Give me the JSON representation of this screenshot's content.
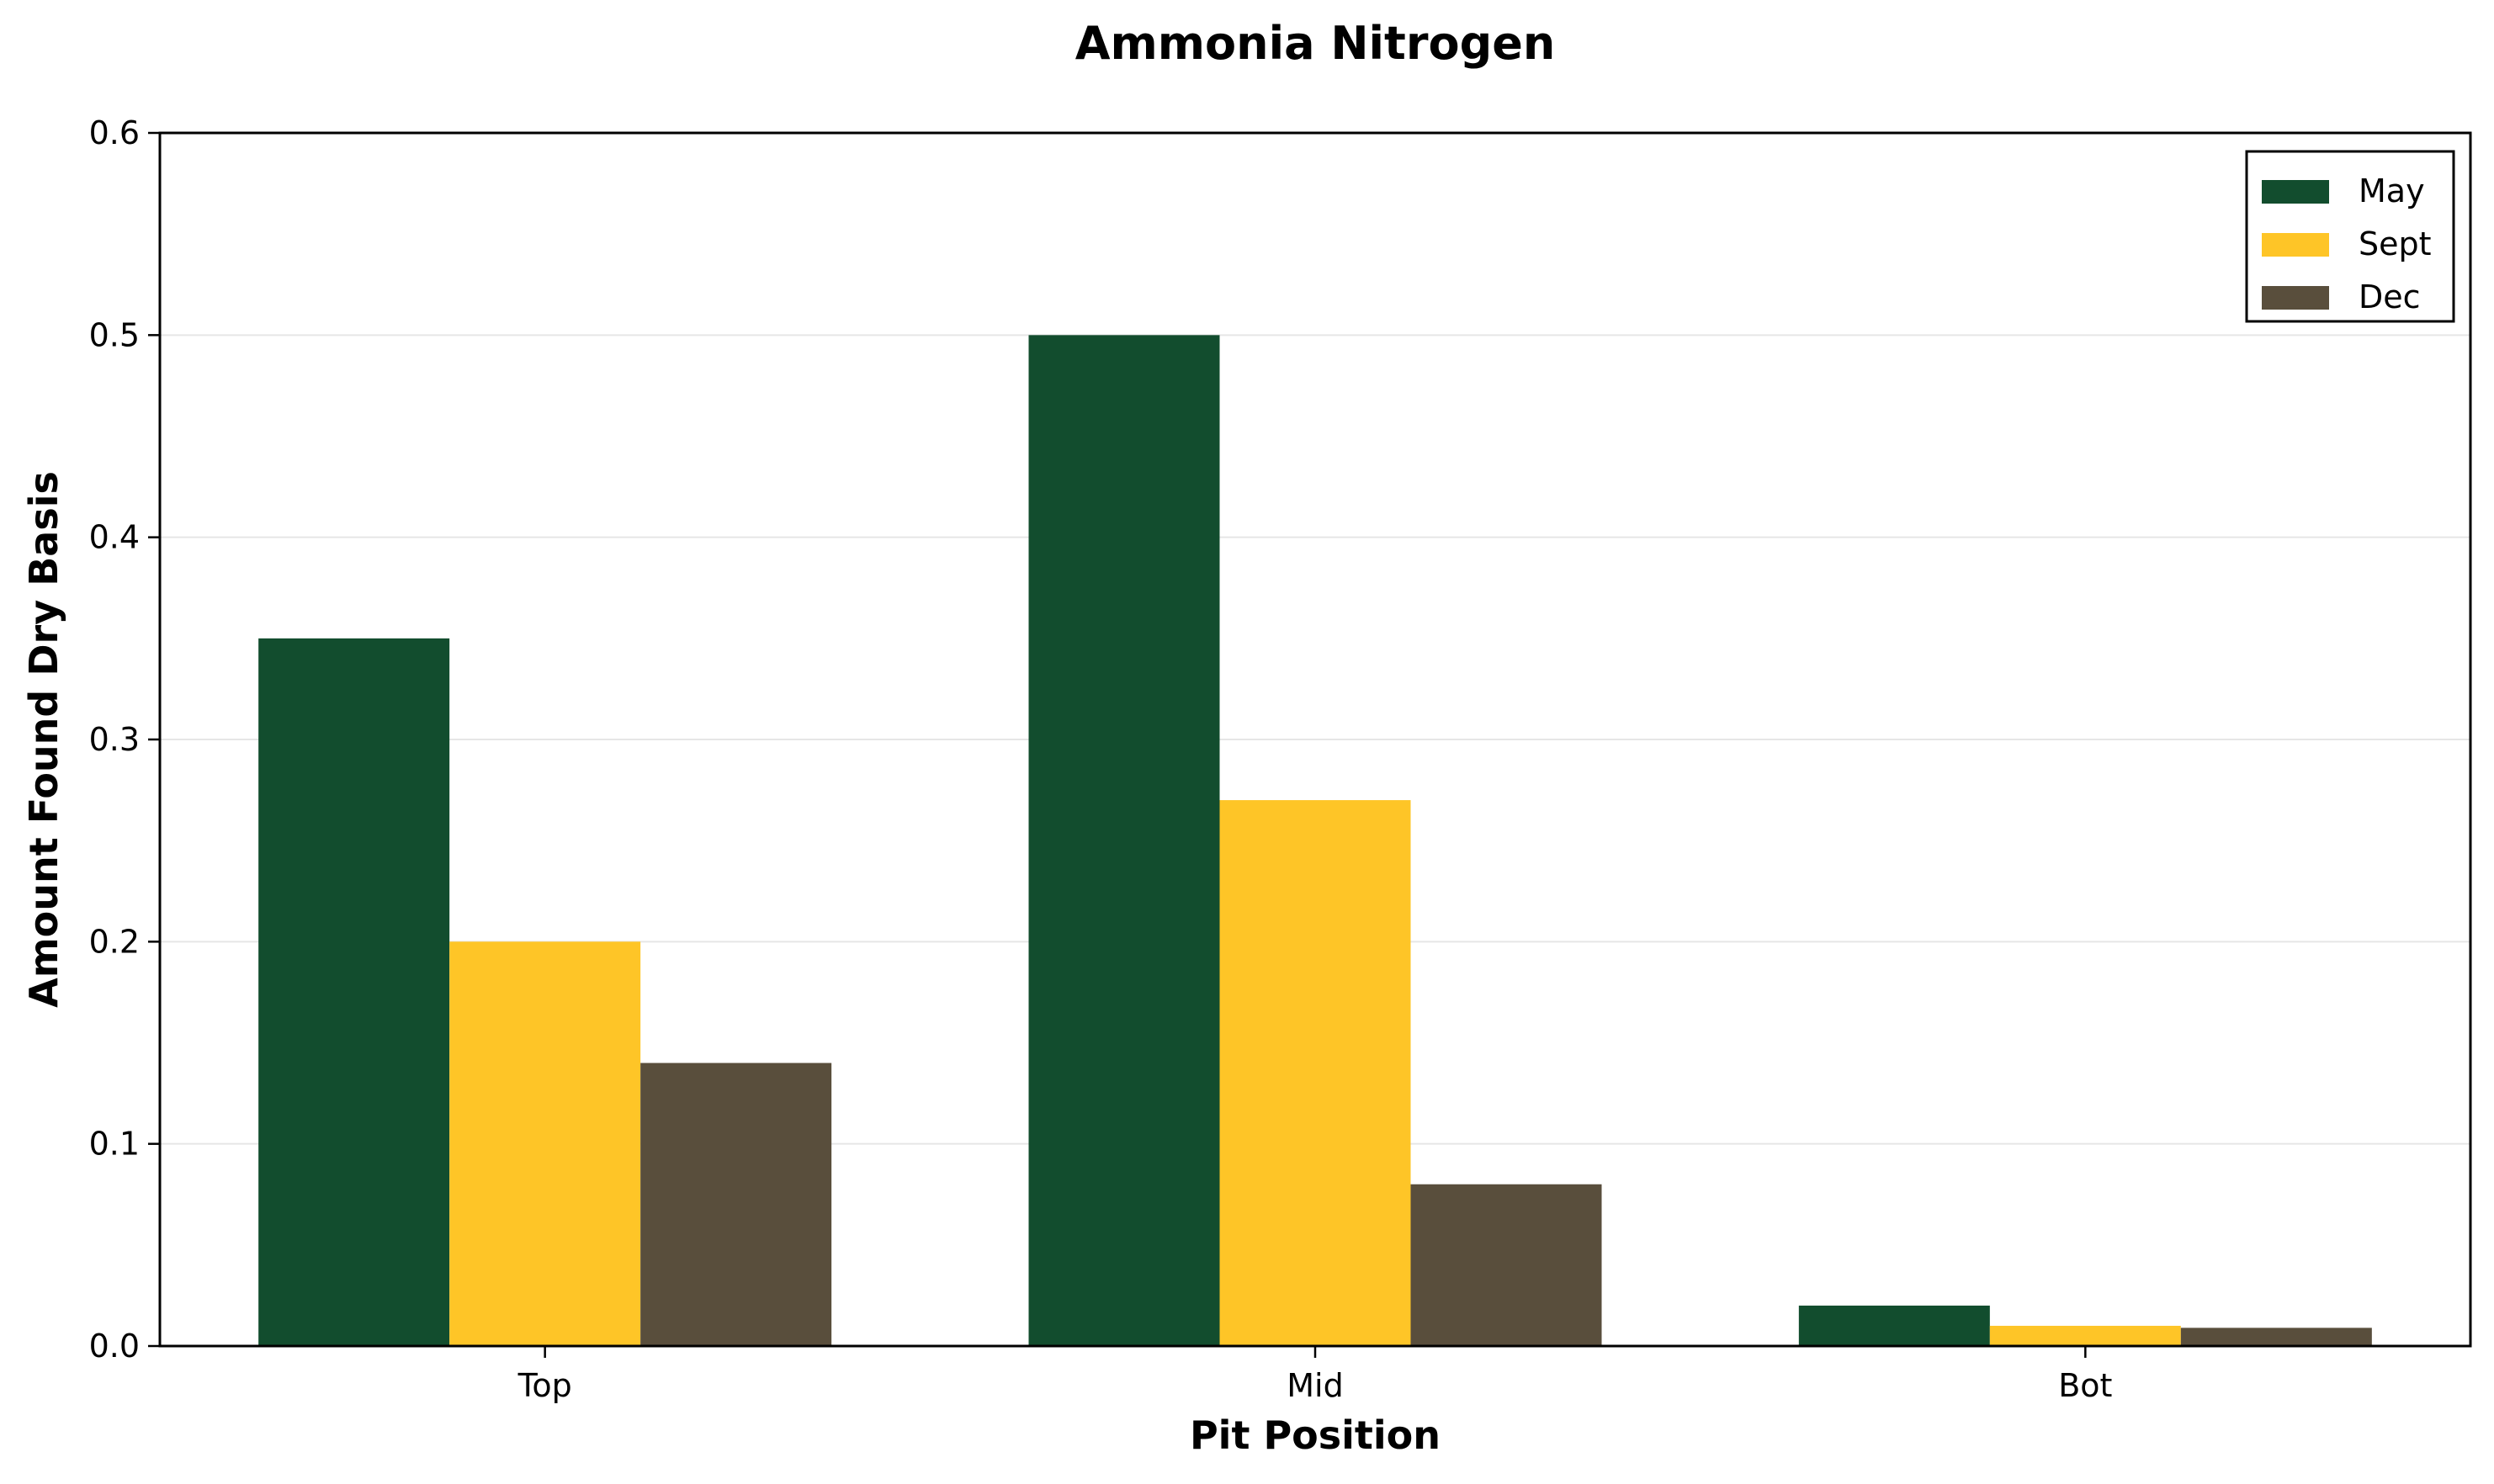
{
  "chart_data": {
    "type": "bar",
    "title": "Ammonia Nitrogen",
    "xlabel": "Pit Position",
    "ylabel": "Amount Found Dry Basis",
    "categories": [
      "Top",
      "Mid",
      "Bot"
    ],
    "series": [
      {
        "name": "May",
        "color": "#124d2e",
        "values": [
          0.35,
          0.5,
          0.02
        ]
      },
      {
        "name": "Sept",
        "color": "#fec527",
        "values": [
          0.2,
          0.27,
          0.01
        ]
      },
      {
        "name": "Dec",
        "color": "#594e3c",
        "values": [
          0.14,
          0.08,
          0.009
        ]
      }
    ],
    "ylim": [
      0,
      0.6
    ],
    "yticks": [
      "0.0",
      "0.1",
      "0.2",
      "0.3",
      "0.4",
      "0.5",
      "0.6"
    ],
    "grid": true,
    "legend_position": "top-right"
  }
}
